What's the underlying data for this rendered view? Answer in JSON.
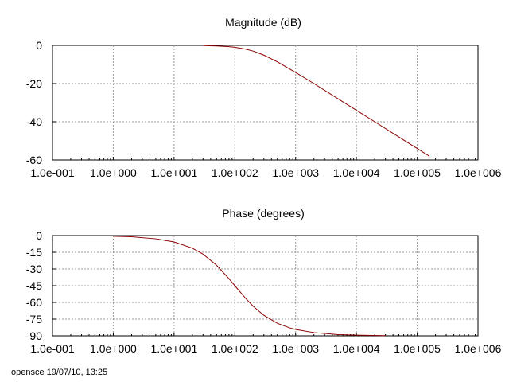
{
  "chart_data": [
    {
      "type": "line",
      "title": "Magnitude (dB)",
      "xscale": "log",
      "xlim": [
        0.1,
        1000000
      ],
      "ylim": [
        -60,
        0
      ],
      "xticks": [
        "1.0e-001",
        "1.0e+000",
        "1.0e+001",
        "1.0e+002",
        "1.0e+003",
        "1.0e+004",
        "1.0e+005",
        "1.0e+006"
      ],
      "yticks": [
        "0",
        "-20",
        "-40",
        "-60"
      ],
      "grid": true,
      "series": [
        {
          "color": "#8b0000",
          "x": [
            30,
            50,
            80,
            100,
            150,
            200,
            300,
            500,
            1000,
            2000,
            5000,
            10000,
            20000,
            50000,
            100000,
            160000
          ],
          "y": [
            -0.1,
            -0.3,
            -0.7,
            -1.0,
            -2.0,
            -3.0,
            -5.1,
            -8.6,
            -14.2,
            -20.0,
            -28.0,
            -34.0,
            -40.0,
            -48.0,
            -54.0,
            -58.1
          ]
        }
      ]
    },
    {
      "type": "line",
      "title": "Phase (degrees)",
      "xscale": "log",
      "xlim": [
        0.1,
        1000000
      ],
      "ylim": [
        -90,
        0
      ],
      "xticks": [
        "1.0e-001",
        "1.0e+000",
        "1.0e+001",
        "1.0e+002",
        "1.0e+003",
        "1.0e+004",
        "1.0e+005",
        "1.0e+006"
      ],
      "yticks": [
        "0",
        "-15",
        "-30",
        "-45",
        "-60",
        "-75",
        "-90"
      ],
      "grid": true,
      "series": [
        {
          "color": "#8b0000",
          "x": [
            1,
            2,
            5,
            10,
            20,
            30,
            50,
            80,
            100,
            150,
            200,
            300,
            500,
            800,
            1000,
            2000,
            5000,
            10000,
            30000
          ],
          "y": [
            -0.6,
            -1.1,
            -2.9,
            -5.7,
            -11.3,
            -16.7,
            -26.6,
            -38.7,
            -45.0,
            -56.3,
            -63.4,
            -71.6,
            -78.7,
            -82.9,
            -84.3,
            -87.1,
            -88.9,
            -89.4,
            -89.8
          ]
        }
      ]
    }
  ],
  "footer": {
    "text": "opensce 19/07/10, 13:25"
  }
}
